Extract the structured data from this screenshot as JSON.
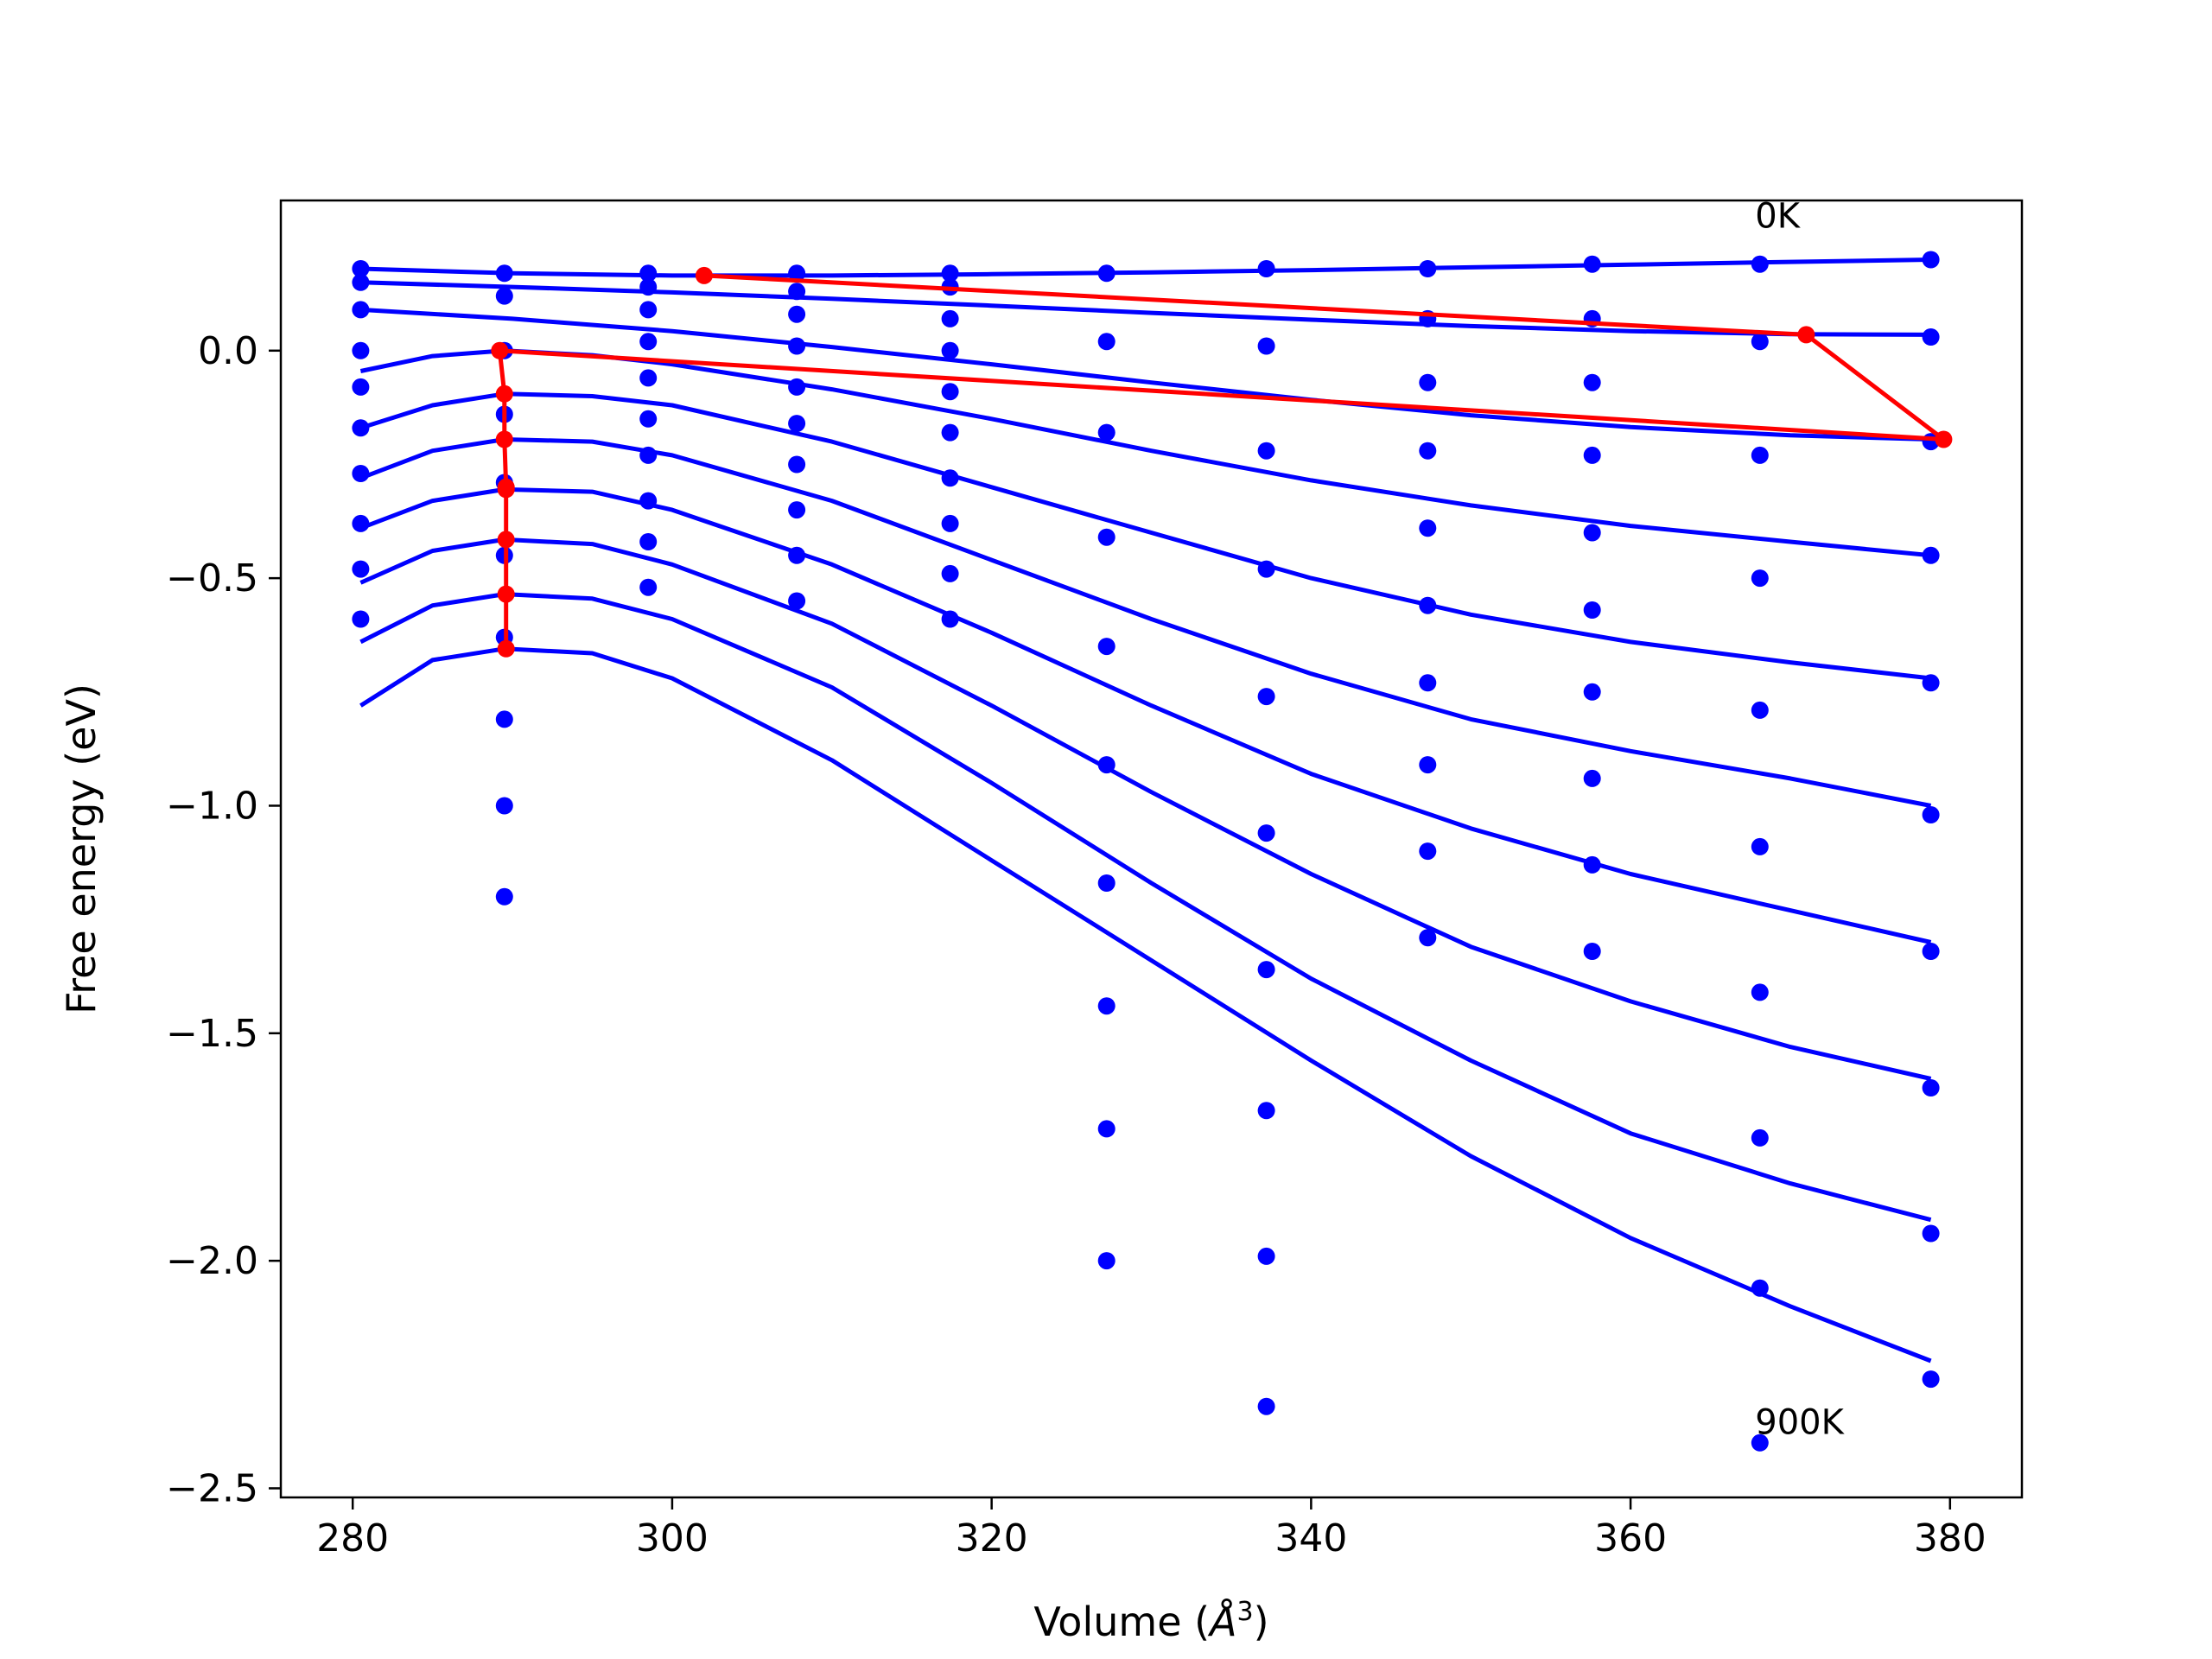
{
  "chart_data": {
    "type": "scatter",
    "title": "",
    "xlabel": "Volume (",
    "xlabel_unit_base": "Å",
    "xlabel_unit_exp": "3",
    "xlabel_close": ")",
    "ylabel": "Free energy (eV)",
    "xlim": [
      275.5,
      384.5
    ],
    "ylim": [
      -2.52,
      0.33
    ],
    "xticks": [
      280,
      300,
      320,
      340,
      360,
      380
    ],
    "xtick_labels": [
      "280",
      "300",
      "320",
      "340",
      "360",
      "380"
    ],
    "yticks": [
      0.0,
      -0.5,
      -1.0,
      -1.5,
      -2.0,
      -2.5
    ],
    "ytick_labels": [
      "0.0",
      "−0.5",
      "−1.0",
      "−1.5",
      "−2.0",
      "−2.5"
    ],
    "grid": false,
    "legend": "none",
    "colors": {
      "fit": "#0000ff",
      "points": "#0000ff",
      "path": "#ff0000"
    },
    "annotations": [
      {
        "text": "0K",
        "x": 367.8,
        "y": 0.27
      },
      {
        "text": "900K",
        "x": 367.8,
        "y": -2.38
      }
    ],
    "volumes": [
      280.5,
      289.5,
      298.5,
      307.8,
      317.4,
      327.2,
      337.2,
      347.3,
      357.6,
      368.1,
      378.8
    ],
    "point_columns": [
      [
        0.18,
        0.15,
        0.09,
        0.0,
        -0.08,
        -0.17,
        -0.27,
        -0.38,
        -0.48,
        -0.59
      ],
      [
        0.17,
        0.12,
        0.0,
        -0.14,
        -0.29,
        -0.45,
        -0.63,
        -0.81,
        -1.0,
        -1.2
      ],
      [
        0.17,
        0.14,
        0.09,
        0.02,
        -0.06,
        -0.15,
        -0.23,
        -0.33,
        -0.42,
        -0.52
      ],
      [
        0.17,
        0.13,
        0.08,
        0.01,
        -0.08,
        -0.16,
        -0.25,
        -0.35,
        -0.45,
        -0.55
      ],
      [
        0.17,
        0.14,
        0.07,
        0.0,
        -0.09,
        -0.18,
        -0.28,
        -0.38,
        -0.49,
        -0.59
      ],
      [
        0.17,
        0.02,
        -0.18,
        -0.41,
        -0.65,
        -0.91,
        -1.17,
        -1.44,
        -1.71,
        -2.0
      ],
      [
        0.18,
        0.01,
        -0.22,
        -0.48,
        -0.76,
        -1.06,
        -1.36,
        -1.67,
        -1.99,
        -2.32
      ],
      [
        0.18,
        0.07,
        -0.07,
        -0.22,
        -0.39,
        -0.56,
        -0.73,
        -0.91,
        -1.1,
        -1.29
      ],
      [
        0.19,
        0.07,
        -0.07,
        -0.23,
        -0.4,
        -0.57,
        -0.75,
        -0.94,
        -1.13,
        -1.32
      ],
      [
        0.19,
        0.02,
        -0.23,
        -0.5,
        -0.79,
        -1.09,
        -1.41,
        -1.73,
        -2.06,
        -2.4
      ],
      [
        0.2,
        0.03,
        -0.2,
        -0.45,
        -0.73,
        -1.02,
        -1.32,
        -1.62,
        -1.94,
        -2.26
      ]
    ],
    "fit_curves": [
      {
        "x": [
          280.5,
          290,
          300,
          310,
          320,
          330,
          340,
          350,
          360,
          370,
          378.8
        ],
        "y": [
          0.18,
          0.17,
          0.165,
          0.165,
          0.168,
          0.172,
          0.177,
          0.183,
          0.189,
          0.195,
          0.2
        ]
      },
      {
        "x": [
          280.5,
          290,
          300,
          310,
          320,
          330,
          340,
          350,
          360,
          370,
          378.8
        ],
        "y": [
          0.15,
          0.14,
          0.128,
          0.114,
          0.099,
          0.083,
          0.068,
          0.054,
          0.043,
          0.036,
          0.035
        ]
      },
      {
        "x": [
          280.5,
          290,
          300,
          310,
          320,
          330,
          340,
          350,
          360,
          370,
          378.8
        ],
        "y": [
          0.09,
          0.07,
          0.043,
          0.008,
          -0.03,
          -0.07,
          -0.108,
          -0.142,
          -0.168,
          -0.186,
          -0.195
        ]
      },
      {
        "x": [
          280.5,
          285,
          289.5,
          295,
          300,
          310,
          320,
          330,
          340,
          350,
          360,
          370,
          378.8
        ],
        "y": [
          -0.045,
          -0.012,
          0.0,
          -0.01,
          -0.03,
          -0.085,
          -0.15,
          -0.22,
          -0.285,
          -0.34,
          -0.385,
          -0.42,
          -0.45
        ]
      },
      {
        "x": [
          280.5,
          285,
          289.5,
          295,
          300,
          310,
          320,
          330,
          340,
          350,
          360,
          370,
          378.8
        ],
        "y": [
          -0.17,
          -0.12,
          -0.095,
          -0.1,
          -0.12,
          -0.2,
          -0.3,
          -0.4,
          -0.5,
          -0.58,
          -0.64,
          -0.685,
          -0.72
        ]
      },
      {
        "x": [
          280.5,
          285,
          289.5,
          295,
          300,
          310,
          320,
          330,
          340,
          350,
          360,
          370,
          378.8
        ],
        "y": [
          -0.28,
          -0.22,
          -0.195,
          -0.2,
          -0.23,
          -0.33,
          -0.46,
          -0.59,
          -0.71,
          -0.81,
          -0.88,
          -0.94,
          -1.0
        ]
      },
      {
        "x": [
          280.5,
          285,
          289.5,
          295,
          300,
          310,
          320,
          330,
          340,
          350,
          360,
          370,
          378.8
        ],
        "y": [
          -0.39,
          -0.33,
          -0.305,
          -0.31,
          -0.35,
          -0.47,
          -0.62,
          -0.78,
          -0.93,
          -1.05,
          -1.15,
          -1.23,
          -1.3
        ]
      },
      {
        "x": [
          280.5,
          285,
          289.5,
          295,
          300,
          310,
          320,
          330,
          340,
          350,
          360,
          370,
          378.8
        ],
        "y": [
          -0.51,
          -0.44,
          -0.415,
          -0.425,
          -0.47,
          -0.6,
          -0.78,
          -0.97,
          -1.15,
          -1.31,
          -1.43,
          -1.53,
          -1.6
        ]
      },
      {
        "x": [
          280.5,
          285,
          289.5,
          295,
          300,
          310,
          320,
          330,
          340,
          350,
          360,
          370,
          378.8
        ],
        "y": [
          -0.64,
          -0.56,
          -0.535,
          -0.545,
          -0.59,
          -0.74,
          -0.95,
          -1.17,
          -1.38,
          -1.56,
          -1.72,
          -1.83,
          -1.91
        ]
      },
      {
        "x": [
          280.5,
          285,
          289.5,
          295,
          300,
          310,
          320,
          330,
          340,
          350,
          360,
          370,
          378.8
        ],
        "y": [
          -0.78,
          -0.68,
          -0.655,
          -0.665,
          -0.72,
          -0.9,
          -1.12,
          -1.34,
          -1.56,
          -1.77,
          -1.95,
          -2.1,
          -2.22
        ]
      }
    ],
    "path": {
      "x": [
        302.0,
        371.0,
        379.6,
        289.2,
        289.5,
        289.5,
        289.6,
        289.6,
        289.6,
        289.6,
        289.6
      ],
      "y": [
        0.165,
        0.035,
        -0.195,
        0.0,
        -0.095,
        -0.195,
        -0.3,
        -0.305,
        -0.415,
        -0.535,
        -0.655
      ]
    }
  }
}
